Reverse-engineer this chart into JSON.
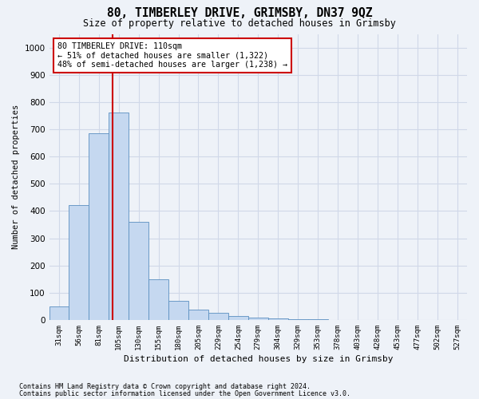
{
  "title1": "80, TIMBERLEY DRIVE, GRIMSBY, DN37 9QZ",
  "title2": "Size of property relative to detached houses in Grimsby",
  "xlabel": "Distribution of detached houses by size in Grimsby",
  "ylabel": "Number of detached properties",
  "bin_labels": [
    "31sqm",
    "56sqm",
    "81sqm",
    "105sqm",
    "130sqm",
    "155sqm",
    "180sqm",
    "205sqm",
    "229sqm",
    "254sqm",
    "279sqm",
    "304sqm",
    "329sqm",
    "353sqm",
    "378sqm",
    "403sqm",
    "428sqm",
    "453sqm",
    "477sqm",
    "502sqm",
    "527sqm"
  ],
  "bar_values": [
    50,
    422,
    685,
    760,
    360,
    150,
    70,
    38,
    25,
    15,
    8,
    5,
    3,
    2,
    1,
    1,
    0,
    0,
    0,
    0,
    0
  ],
  "bar_color": "#c5d8f0",
  "bar_edge_color": "#5a8fc0",
  "grid_color": "#d0d8e8",
  "annotation_text": "80 TIMBERLEY DRIVE: 110sqm\n← 51% of detached houses are smaller (1,322)\n48% of semi-detached houses are larger (1,238) →",
  "annotation_box_color": "#ffffff",
  "annotation_box_edge": "#cc0000",
  "subject_line_color": "#cc0000",
  "ylim": [
    0,
    1050
  ],
  "yticks": [
    0,
    100,
    200,
    300,
    400,
    500,
    600,
    700,
    800,
    900,
    1000
  ],
  "footnote1": "Contains HM Land Registry data © Crown copyright and database right 2024.",
  "footnote2": "Contains public sector information licensed under the Open Government Licence v3.0.",
  "bg_color": "#eef2f8"
}
